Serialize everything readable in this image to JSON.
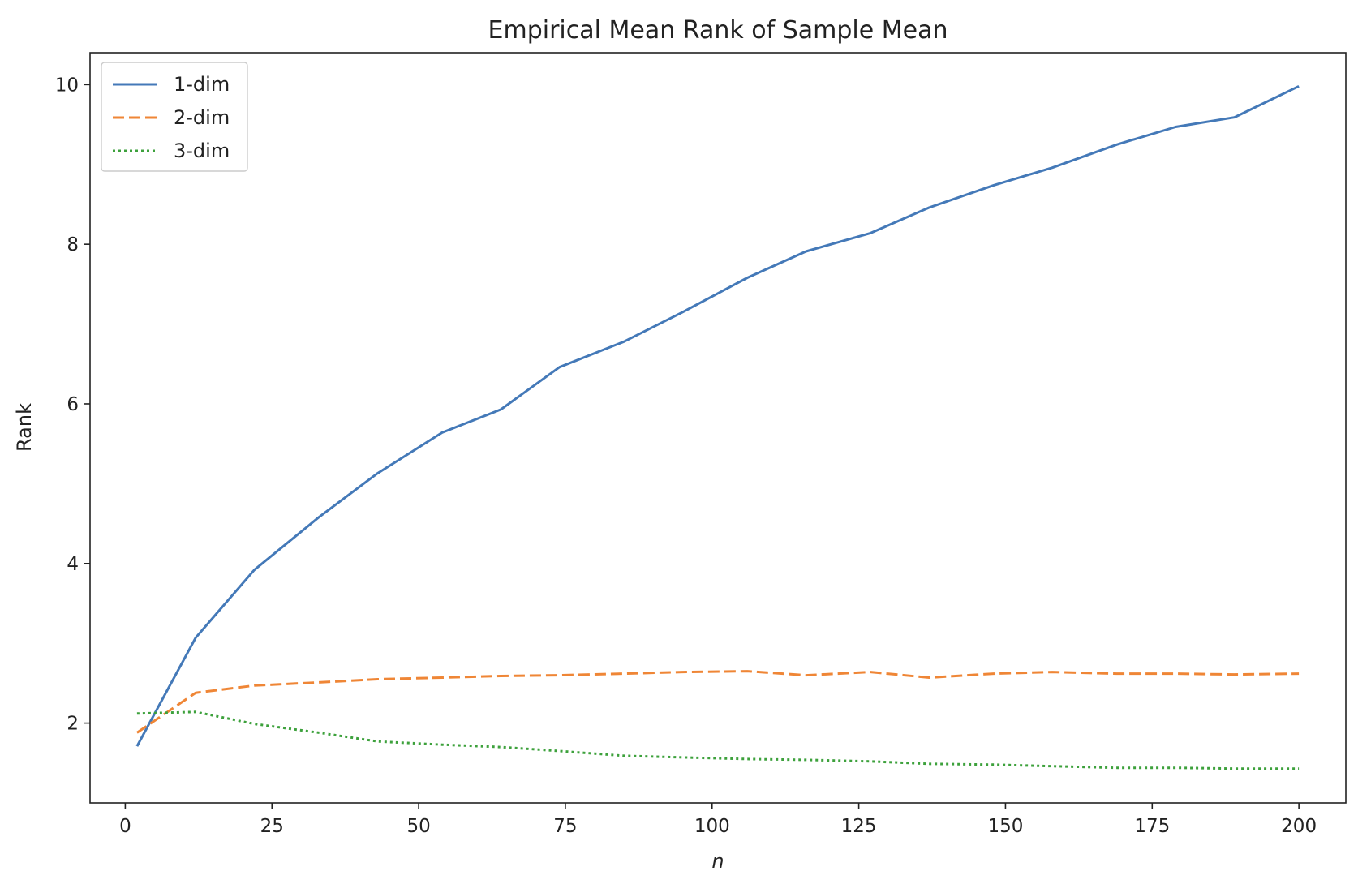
{
  "chart_data": {
    "type": "line",
    "title": "Empirical Mean Rank of Sample Mean",
    "xlabel": "n",
    "ylabel": "Rank",
    "xlim": [
      -6,
      208
    ],
    "ylim": [
      1.0,
      10.4
    ],
    "xticks": [
      0,
      25,
      50,
      75,
      100,
      125,
      150,
      175,
      200
    ],
    "yticks": [
      2,
      4,
      6,
      8,
      10
    ],
    "grid": false,
    "legend": "top-left",
    "x": [
      2,
      12,
      22,
      33,
      43,
      54,
      64,
      74,
      85,
      95,
      106,
      116,
      127,
      137,
      148,
      158,
      169,
      179,
      189,
      200
    ],
    "series": [
      {
        "name": "1-dim",
        "color": "#4479b8",
        "style": "solid",
        "values": [
          1.71,
          3.07,
          3.92,
          4.58,
          5.13,
          5.64,
          5.93,
          6.46,
          6.78,
          7.15,
          7.58,
          7.91,
          8.14,
          8.46,
          8.74,
          8.96,
          9.25,
          9.47,
          9.59,
          9.98
        ]
      },
      {
        "name": "2-dim",
        "color": "#ef8636",
        "style": "dashed",
        "values": [
          1.88,
          2.38,
          2.47,
          2.51,
          2.55,
          2.57,
          2.59,
          2.6,
          2.62,
          2.64,
          2.65,
          2.6,
          2.64,
          2.57,
          2.62,
          2.64,
          2.62,
          2.62,
          2.61,
          2.62
        ]
      },
      {
        "name": "3-dim",
        "color": "#3da13c",
        "style": "dotted",
        "values": [
          2.12,
          2.14,
          1.99,
          1.88,
          1.77,
          1.73,
          1.7,
          1.65,
          1.59,
          1.57,
          1.55,
          1.54,
          1.52,
          1.49,
          1.48,
          1.46,
          1.44,
          1.44,
          1.43,
          1.43
        ]
      }
    ]
  }
}
